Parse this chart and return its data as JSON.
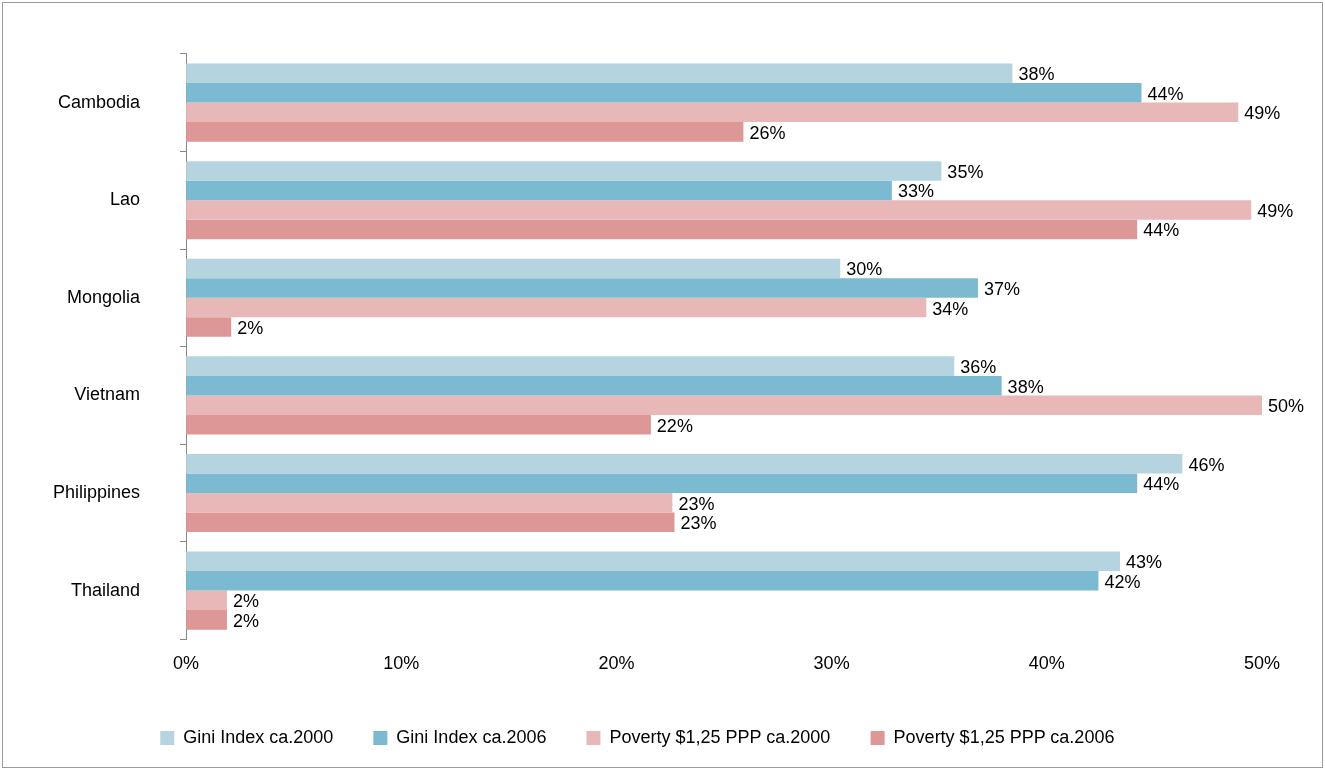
{
  "chart_data": {
    "type": "bar",
    "orientation": "horizontal",
    "categories": [
      "Cambodia",
      "Lao",
      "Mongolia",
      "Vietnam",
      "Philippines",
      "Thailand"
    ],
    "series": [
      {
        "name": "Gini Index ca.2000",
        "color": "#b5d4df",
        "values": [
          38.4,
          35.1,
          30.4,
          35.7,
          46.3,
          43.4
        ],
        "value_labels": [
          "38%",
          "35%",
          "30%",
          "36%",
          "46%",
          "43%"
        ]
      },
      {
        "name": "Gini Index ca.2006",
        "color": "#7bbad0",
        "values": [
          44.4,
          32.8,
          36.8,
          37.9,
          44.2,
          42.4
        ],
        "value_labels": [
          "44%",
          "33%",
          "37%",
          "38%",
          "44%",
          "42%"
        ]
      },
      {
        "name": "Poverty $1,25 PPP ca.2000",
        "color": "#e8b8b8",
        "values": [
          48.9,
          49.5,
          34.4,
          50,
          22.6,
          1.9
        ],
        "value_labels": [
          "49%",
          "49%",
          "34%",
          "50%",
          "23%",
          "2%"
        ]
      },
      {
        "name": "Poverty $1,25 PPP ca.2006",
        "color": "#dc9796",
        "values": [
          25.9,
          44.2,
          2.1,
          21.6,
          22.7,
          1.9
        ],
        "value_labels": [
          "26%",
          "44%",
          "2%",
          "22%",
          "23%",
          "2%"
        ]
      }
    ],
    "xlim": [
      0,
      50
    ],
    "xticks": [
      {
        "value": 0,
        "label": "0%"
      },
      {
        "value": 10,
        "label": "10%"
      },
      {
        "value": 20,
        "label": "20%"
      },
      {
        "value": 30,
        "label": "30%"
      },
      {
        "value": 40,
        "label": "40%"
      },
      {
        "value": 50,
        "label": "50%"
      }
    ],
    "grid": false,
    "legend": "bottom"
  }
}
